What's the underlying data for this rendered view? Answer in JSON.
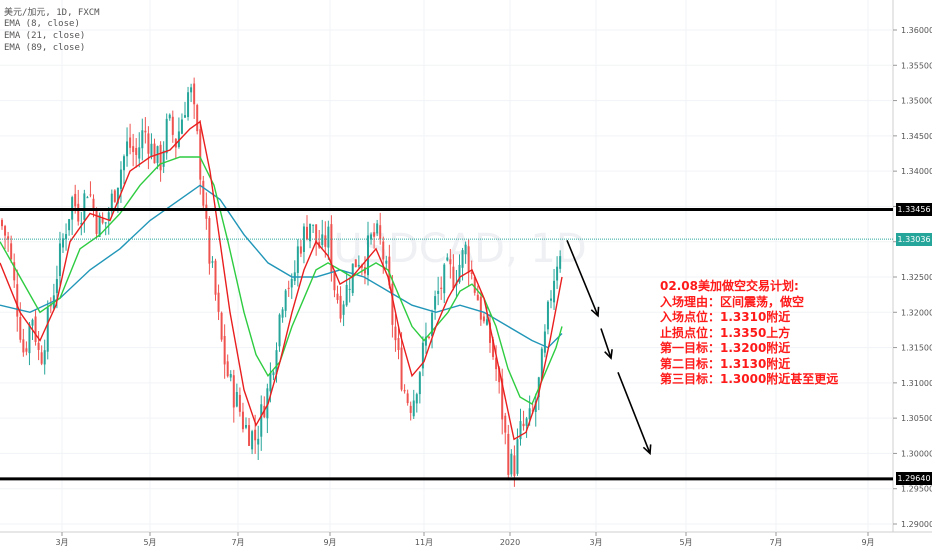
{
  "header": {
    "symbol": "美元/加元, 1D, FXCM",
    "ema1": "EMA (8, close)",
    "ema2": "EMA (21, close)",
    "ema3": "EMA (89, close)"
  },
  "watermark": "USDCAD, 1D",
  "plan": {
    "title": "02.08美加做空交易计划:",
    "lines": [
      "入场理由：区间震荡，做空",
      "入场点位：1.3310附近",
      "止损点位：1.3350上方",
      "第一目标：1.3200附近",
      "第二目标：1.3130附近",
      "第三目标：1.3000附近甚至更远"
    ]
  },
  "price_tags": {
    "resistance": "1.33456",
    "current": "1.33036",
    "support": "1.29640"
  },
  "colors": {
    "up": "#26a69a",
    "down": "#ef5350",
    "ema8": "#e91e1e",
    "ema21": "#2ecc40",
    "ema89": "#2196b8",
    "annotation": "#ff1a1a",
    "current_tag": "#26a69a"
  },
  "chart_data": {
    "type": "candlestick",
    "ylim": [
      1.2875,
      1.3635
    ],
    "y_ticks": [
      "1.36000",
      "1.35500",
      "1.35000",
      "1.34500",
      "1.34000",
      "1.33500",
      "1.33000",
      "1.32500",
      "1.32000",
      "1.31500",
      "1.31000",
      "1.30500",
      "1.30000",
      "1.29500",
      "1.29000"
    ],
    "x_ticks": [
      "3月",
      "5月",
      "7月",
      "9月",
      "11月",
      "2020",
      "3月",
      "5月",
      "7月",
      "9月"
    ],
    "resistance": 1.33456,
    "support": 1.2964,
    "current": 1.33036,
    "close_path": [
      [
        0,
        1.333
      ],
      [
        8,
        1.33
      ],
      [
        16,
        1.322
      ],
      [
        24,
        1.314
      ],
      [
        32,
        1.32
      ],
      [
        40,
        1.313
      ],
      [
        48,
        1.319
      ],
      [
        56,
        1.325
      ],
      [
        64,
        1.331
      ],
      [
        72,
        1.336
      ],
      [
        80,
        1.334
      ],
      [
        88,
        1.338
      ],
      [
        96,
        1.333
      ],
      [
        104,
        1.332
      ],
      [
        112,
        1.336
      ],
      [
        120,
        1.34
      ],
      [
        128,
        1.344
      ],
      [
        136,
        1.342
      ],
      [
        144,
        1.346
      ],
      [
        152,
        1.343
      ],
      [
        160,
        1.341
      ],
      [
        168,
        1.347
      ],
      [
        176,
        1.344
      ],
      [
        184,
        1.349
      ],
      [
        190,
        1.352
      ],
      [
        196,
        1.346
      ],
      [
        202,
        1.338
      ],
      [
        208,
        1.329
      ],
      [
        214,
        1.324
      ],
      [
        220,
        1.317
      ],
      [
        226,
        1.312
      ],
      [
        232,
        1.309
      ],
      [
        238,
        1.307
      ],
      [
        244,
        1.304
      ],
      [
        250,
        1.303
      ],
      [
        256,
        1.302
      ],
      [
        262,
        1.306
      ],
      [
        268,
        1.309
      ],
      [
        274,
        1.314
      ],
      [
        280,
        1.32
      ],
      [
        286,
        1.325
      ],
      [
        292,
        1.323
      ],
      [
        298,
        1.329
      ],
      [
        304,
        1.331
      ],
      [
        310,
        1.333
      ],
      [
        316,
        1.33
      ],
      [
        322,
        1.329
      ],
      [
        328,
        1.331
      ],
      [
        334,
        1.324
      ],
      [
        340,
        1.321
      ],
      [
        346,
        1.323
      ],
      [
        352,
        1.326
      ],
      [
        358,
        1.328
      ],
      [
        364,
        1.327
      ],
      [
        370,
        1.33
      ],
      [
        376,
        1.331
      ],
      [
        382,
        1.329
      ],
      [
        388,
        1.324
      ],
      [
        394,
        1.317
      ],
      [
        400,
        1.312
      ],
      [
        406,
        1.308
      ],
      [
        412,
        1.307
      ],
      [
        418,
        1.311
      ],
      [
        424,
        1.315
      ],
      [
        430,
        1.318
      ],
      [
        436,
        1.322
      ],
      [
        442,
        1.324
      ],
      [
        448,
        1.326
      ],
      [
        454,
        1.325
      ],
      [
        460,
        1.327
      ],
      [
        466,
        1.329
      ],
      [
        472,
        1.325
      ],
      [
        478,
        1.322
      ],
      [
        484,
        1.318
      ],
      [
        490,
        1.316
      ],
      [
        496,
        1.312
      ],
      [
        502,
        1.306
      ],
      [
        508,
        1.299
      ],
      [
        514,
        1.298
      ],
      [
        520,
        1.303
      ],
      [
        526,
        1.304
      ],
      [
        532,
        1.305
      ],
      [
        538,
        1.309
      ],
      [
        544,
        1.315
      ],
      [
        550,
        1.322
      ],
      [
        556,
        1.327
      ],
      [
        562,
        1.33
      ]
    ],
    "ema_paths": {
      "ema8": [
        [
          0,
          1.327
        ],
        [
          20,
          1.32
        ],
        [
          40,
          1.316
        ],
        [
          56,
          1.321
        ],
        [
          70,
          1.33
        ],
        [
          90,
          1.334
        ],
        [
          110,
          1.333
        ],
        [
          130,
          1.34
        ],
        [
          150,
          1.342
        ],
        [
          170,
          1.343
        ],
        [
          190,
          1.346
        ],
        [
          200,
          1.347
        ],
        [
          210,
          1.34
        ],
        [
          220,
          1.33
        ],
        [
          230,
          1.32
        ],
        [
          244,
          1.309
        ],
        [
          256,
          1.304
        ],
        [
          268,
          1.307
        ],
        [
          280,
          1.313
        ],
        [
          292,
          1.32
        ],
        [
          304,
          1.326
        ],
        [
          316,
          1.33
        ],
        [
          328,
          1.328
        ],
        [
          340,
          1.324
        ],
        [
          352,
          1.325
        ],
        [
          364,
          1.327
        ],
        [
          376,
          1.329
        ],
        [
          388,
          1.325
        ],
        [
          400,
          1.317
        ],
        [
          412,
          1.311
        ],
        [
          424,
          1.313
        ],
        [
          436,
          1.318
        ],
        [
          448,
          1.322
        ],
        [
          460,
          1.325
        ],
        [
          472,
          1.326
        ],
        [
          484,
          1.322
        ],
        [
          496,
          1.314
        ],
        [
          508,
          1.306
        ],
        [
          514,
          1.302
        ],
        [
          526,
          1.303
        ],
        [
          538,
          1.308
        ],
        [
          550,
          1.316
        ],
        [
          562,
          1.325
        ]
      ],
      "ema21": [
        [
          0,
          1.33
        ],
        [
          20,
          1.325
        ],
        [
          40,
          1.32
        ],
        [
          60,
          1.322
        ],
        [
          80,
          1.329
        ],
        [
          100,
          1.331
        ],
        [
          120,
          1.334
        ],
        [
          140,
          1.338
        ],
        [
          160,
          1.341
        ],
        [
          180,
          1.342
        ],
        [
          200,
          1.342
        ],
        [
          214,
          1.338
        ],
        [
          228,
          1.33
        ],
        [
          244,
          1.32
        ],
        [
          256,
          1.314
        ],
        [
          268,
          1.311
        ],
        [
          280,
          1.313
        ],
        [
          292,
          1.318
        ],
        [
          304,
          1.322
        ],
        [
          316,
          1.326
        ],
        [
          328,
          1.327
        ],
        [
          340,
          1.326
        ],
        [
          352,
          1.325
        ],
        [
          364,
          1.326
        ],
        [
          376,
          1.327
        ],
        [
          388,
          1.326
        ],
        [
          400,
          1.322
        ],
        [
          412,
          1.318
        ],
        [
          424,
          1.316
        ],
        [
          436,
          1.318
        ],
        [
          448,
          1.32
        ],
        [
          460,
          1.323
        ],
        [
          472,
          1.324
        ],
        [
          484,
          1.322
        ],
        [
          496,
          1.318
        ],
        [
          508,
          1.312
        ],
        [
          520,
          1.308
        ],
        [
          532,
          1.307
        ],
        [
          544,
          1.311
        ],
        [
          556,
          1.315
        ],
        [
          562,
          1.318
        ]
      ],
      "ema89": [
        [
          0,
          1.321
        ],
        [
          30,
          1.32
        ],
        [
          60,
          1.322
        ],
        [
          90,
          1.326
        ],
        [
          120,
          1.329
        ],
        [
          150,
          1.333
        ],
        [
          180,
          1.336
        ],
        [
          200,
          1.338
        ],
        [
          220,
          1.336
        ],
        [
          244,
          1.331
        ],
        [
          268,
          1.327
        ],
        [
          292,
          1.325
        ],
        [
          316,
          1.325
        ],
        [
          340,
          1.326
        ],
        [
          364,
          1.325
        ],
        [
          388,
          1.323
        ],
        [
          412,
          1.321
        ],
        [
          436,
          1.32
        ],
        [
          460,
          1.321
        ],
        [
          484,
          1.32
        ],
        [
          508,
          1.318
        ],
        [
          532,
          1.316
        ],
        [
          548,
          1.315
        ],
        [
          562,
          1.317
        ]
      ]
    },
    "forecast_arrows": [
      [
        567,
        1.3302,
        598,
        1.3195
      ],
      [
        601,
        1.3177,
        611,
        1.3135
      ],
      [
        618,
        1.3115,
        650,
        1.3
      ]
    ]
  }
}
